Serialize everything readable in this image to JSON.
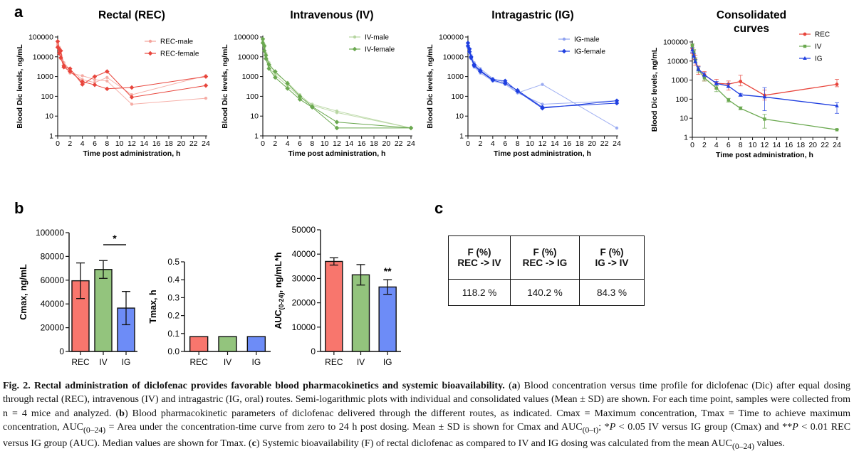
{
  "panel_labels": {
    "a": "a",
    "b": "b",
    "c": "c"
  },
  "colors": {
    "rec": "#e8453c",
    "rec_light": "#f4a39b",
    "iv": "#6aa84f",
    "iv_light": "#b5d59f",
    "ig": "#1f3fe0",
    "ig_light": "#8fa2f0",
    "bar_rec": "#f8766d",
    "bar_iv": "#93c47d",
    "bar_ig": "#6d8cf7"
  },
  "chart_data": [
    {
      "id": "rec",
      "type": "line",
      "title": "Rectal (REC)",
      "xlabel": "Time post administration,  h",
      "ylabel": "Blood Dic levels, ng/mL",
      "yscale": "log",
      "ylim": [
        1,
        100000
      ],
      "xlim": [
        0,
        24
      ],
      "xticks": [
        0,
        2,
        4,
        6,
        8,
        10,
        12,
        14,
        16,
        18,
        20,
        22,
        24
      ],
      "yticks": [
        "1",
        "10",
        "100",
        "1000",
        "10000",
        "100000"
      ],
      "legend": [
        "REC-male",
        "REC-female"
      ],
      "series": [
        {
          "name": "REC-male",
          "style": "light",
          "lines": [
            [
              [
                0,
                50000
              ],
              [
                0.25,
                30000
              ],
              [
                0.5,
                12000
              ],
              [
                1,
                5000
              ],
              [
                2,
                2200
              ],
              [
                4,
                700
              ],
              [
                6,
                500
              ],
              [
                8,
                900
              ],
              [
                12,
                120
              ],
              [
                24,
                1100
              ]
            ],
            [
              [
                0,
                40000
              ],
              [
                0.25,
                20000
              ],
              [
                0.5,
                8000
              ],
              [
                1,
                4000
              ],
              [
                2,
                1500
              ],
              [
                4,
                1100
              ],
              [
                6,
                700
              ],
              [
                8,
                600
              ],
              [
                12,
                40
              ],
              [
                24,
                80
              ]
            ]
          ]
        },
        {
          "name": "REC-female",
          "style": "dark",
          "lines": [
            [
              [
                0,
                60000
              ],
              [
                0.25,
                25000
              ],
              [
                0.5,
                20000
              ],
              [
                1,
                3500
              ],
              [
                2,
                2500
              ],
              [
                4,
                400
              ],
              [
                6,
                1000
              ],
              [
                8,
                1800
              ],
              [
                12,
                90
              ],
              [
                24,
                350
              ]
            ],
            [
              [
                0,
                30000
              ],
              [
                0.25,
                15000
              ],
              [
                0.5,
                9000
              ],
              [
                1,
                3000
              ],
              [
                2,
                1800
              ],
              [
                4,
                550
              ],
              [
                6,
                380
              ],
              [
                8,
                240
              ],
              [
                12,
                280
              ],
              [
                24,
                1000
              ]
            ]
          ]
        }
      ]
    },
    {
      "id": "iv",
      "type": "line",
      "title": "Intravenous (IV)",
      "xlabel": "Time post administration,  h",
      "ylabel": "Blood Dic levels, ng/mL",
      "yscale": "log",
      "ylim": [
        1,
        100000
      ],
      "xlim": [
        0,
        24
      ],
      "xticks": [
        0,
        2,
        4,
        6,
        8,
        10,
        12,
        14,
        16,
        18,
        20,
        22,
        24
      ],
      "yticks": [
        "1",
        "10",
        "100",
        "1000",
        "10000",
        "100000"
      ],
      "legend": [
        "IV-male",
        "IV-female"
      ],
      "series": [
        {
          "name": "IV-male",
          "style": "light",
          "lines": [
            [
              [
                0,
                70000
              ],
              [
                0.25,
                40000
              ],
              [
                0.5,
                15000
              ],
              [
                1,
                5000
              ],
              [
                2,
                1500
              ],
              [
                4,
                500
              ],
              [
                6,
                120
              ],
              [
                8,
                35
              ],
              [
                12,
                15
              ],
              [
                24,
                2.5
              ]
            ],
            [
              [
                0,
                60000
              ],
              [
                0.25,
                30000
              ],
              [
                0.5,
                10000
              ],
              [
                1,
                3000
              ],
              [
                2,
                1200
              ],
              [
                4,
                350
              ],
              [
                6,
                90
              ],
              [
                8,
                40
              ],
              [
                12,
                18
              ],
              [
                24,
                2.5
              ]
            ]
          ]
        },
        {
          "name": "IV-female",
          "style": "dark",
          "lines": [
            [
              [
                0,
                80000
              ],
              [
                0.25,
                35000
              ],
              [
                0.5,
                12000
              ],
              [
                1,
                4000
              ],
              [
                2,
                1800
              ],
              [
                4,
                450
              ],
              [
                6,
                100
              ],
              [
                8,
                30
              ],
              [
                12,
                5
              ],
              [
                24,
                2.5
              ]
            ],
            [
              [
                0,
                50000
              ],
              [
                0.25,
                20000
              ],
              [
                0.5,
                8000
              ],
              [
                1,
                2500
              ],
              [
                2,
                900
              ],
              [
                4,
                250
              ],
              [
                6,
                70
              ],
              [
                8,
                28
              ],
              [
                12,
                2.5
              ],
              [
                24,
                2.5
              ]
            ]
          ]
        }
      ]
    },
    {
      "id": "ig",
      "type": "line",
      "title": "Intragastric (IG)",
      "xlabel": "Time post administration,  h",
      "ylabel": "Blood Dic levels, ng/mL",
      "yscale": "log",
      "ylim": [
        1,
        100000
      ],
      "xlim": [
        0,
        24
      ],
      "xticks": [
        0,
        2,
        4,
        6,
        8,
        10,
        12,
        14,
        16,
        18,
        20,
        22,
        24
      ],
      "yticks": [
        "1",
        "10",
        "100",
        "1000",
        "10000",
        "100000"
      ],
      "legend": [
        "IG-male",
        "IG-female"
      ],
      "series": [
        {
          "name": "IG-male",
          "style": "light",
          "lines": [
            [
              [
                0,
                40000
              ],
              [
                0.25,
                20000
              ],
              [
                0.5,
                12000
              ],
              [
                1,
                5000
              ],
              [
                2,
                2500
              ],
              [
                4,
                800
              ],
              [
                6,
                500
              ],
              [
                8,
                150
              ],
              [
                12,
                400
              ],
              [
                24,
                2.5
              ]
            ],
            [
              [
                0,
                30000
              ],
              [
                0.25,
                15000
              ],
              [
                0.5,
                8000
              ],
              [
                1,
                3000
              ],
              [
                2,
                1500
              ],
              [
                4,
                600
              ],
              [
                6,
                400
              ],
              [
                8,
                150
              ],
              [
                12,
                40
              ],
              [
                24,
                60
              ]
            ]
          ]
        },
        {
          "name": "IG-female",
          "style": "dark",
          "lines": [
            [
              [
                0,
                50000
              ],
              [
                0.25,
                25000
              ],
              [
                0.5,
                10000
              ],
              [
                1,
                4000
              ],
              [
                2,
                2000
              ],
              [
                4,
                700
              ],
              [
                6,
                600
              ],
              [
                8,
                180
              ],
              [
                12,
                25
              ],
              [
                24,
                60
              ]
            ],
            [
              [
                0,
                35000
              ],
              [
                0.25,
                18000
              ],
              [
                0.5,
                9000
              ],
              [
                1,
                3500
              ],
              [
                2,
                1800
              ],
              [
                4,
                650
              ],
              [
                6,
                450
              ],
              [
                8,
                200
              ],
              [
                12,
                28
              ],
              [
                24,
                45
              ]
            ]
          ]
        }
      ]
    },
    {
      "id": "cons",
      "type": "line",
      "title": "Consolidated curves",
      "title_lines": [
        "Consolidated",
        "curves"
      ],
      "xlabel": "Time post administration,  h",
      "ylabel": "Blood Dic levels, ng/mL",
      "yscale": "log",
      "ylim": [
        1,
        100000
      ],
      "xlim": [
        0,
        24
      ],
      "xticks": [
        0,
        2,
        4,
        6,
        8,
        10,
        12,
        14,
        16,
        18,
        20,
        22,
        24
      ],
      "yticks": [
        "1",
        "10",
        "100",
        "1000",
        "10000",
        "100000"
      ],
      "legend": [
        "REC",
        "IV",
        "IG"
      ],
      "series": [
        {
          "name": "REC",
          "x": [
            0,
            0.25,
            0.5,
            1,
            2,
            4,
            6,
            8,
            12,
            24
          ],
          "y": [
            45000,
            22000,
            12000,
            3800,
            1900,
            680,
            620,
            850,
            160,
            600
          ],
          "err_lo": [
            25000,
            12000,
            6000,
            2000,
            900,
            350,
            300,
            500,
            90,
            450
          ],
          "err_hi": [
            70000,
            35000,
            20000,
            5500,
            2800,
            1100,
            900,
            1800,
            300,
            1100
          ]
        },
        {
          "name": "IV",
          "x": [
            0,
            0.25,
            0.5,
            1,
            2,
            4,
            6,
            8,
            12,
            24
          ],
          "y": [
            65000,
            30000,
            11000,
            3500,
            1300,
            380,
            90,
            33,
            9,
            2.5
          ],
          "err_lo": [
            50000,
            20000,
            8000,
            2500,
            900,
            250,
            70,
            28,
            3,
            2.5
          ],
          "err_hi": [
            80000,
            40000,
            15000,
            5000,
            1800,
            500,
            110,
            40,
            16,
            2.5
          ]
        },
        {
          "name": "IG",
          "x": [
            0,
            0.25,
            0.5,
            1,
            2,
            4,
            6,
            8,
            12,
            24
          ],
          "y": [
            38000,
            19000,
            9500,
            3800,
            1900,
            680,
            480,
            170,
            130,
            45
          ],
          "err_lo": [
            28000,
            15000,
            8000,
            3000,
            1500,
            550,
            400,
            140,
            25,
            18
          ],
          "err_hi": [
            50000,
            25000,
            12000,
            5000,
            2500,
            850,
            650,
            200,
            400,
            65
          ]
        }
      ]
    },
    {
      "id": "cmax",
      "type": "bar",
      "ylabel": "Cmax, ng/mL",
      "categories": [
        "REC",
        "IV",
        "IG"
      ],
      "values": [
        59500,
        69000,
        36500
      ],
      "err": [
        15000,
        7500,
        14000
      ],
      "ylim": [
        0,
        100000
      ],
      "yticks": [
        "0",
        "20000",
        "40000",
        "60000",
        "80000",
        "100000"
      ],
      "annotation": "*",
      "annotation_between": [
        "IV",
        "IG"
      ]
    },
    {
      "id": "tmax",
      "type": "bar",
      "ylabel": "Tmax, h",
      "categories": [
        "REC",
        "IV",
        "IG"
      ],
      "values": [
        0.083,
        0.083,
        0.083
      ],
      "ylim": [
        0,
        0.5
      ],
      "yticks": [
        "0.0",
        "0.1",
        "0.2",
        "0.3",
        "0.4",
        "0.5"
      ]
    },
    {
      "id": "auc",
      "type": "bar",
      "ylabel_main": "AUC",
      "ylabel_sub": "(0-24)",
      "ylabel_rest": ", ng/mL*h",
      "categories": [
        "REC",
        "IV",
        "IG"
      ],
      "values": [
        37000,
        31500,
        26500
      ],
      "err": [
        1500,
        4200,
        3000
      ],
      "ylim": [
        0,
        50000
      ],
      "yticks": [
        "0",
        "10000",
        "20000",
        "30000",
        "40000",
        "50000"
      ],
      "annotation": "**",
      "annotation_on": "IG"
    },
    {
      "id": "bioavailability",
      "type": "table",
      "headers": [
        [
          "F (%)",
          "REC -> IV"
        ],
        [
          "F (%)",
          "REC -> IG"
        ],
        [
          "F (%)",
          "IG -> IV"
        ]
      ],
      "values": [
        "118.2 %",
        "140.2 %",
        "84.3 %"
      ]
    }
  ],
  "caption": {
    "figno": "Fig. 2.",
    "title": "Rectal administration of diclofenac provides favorable blood pharmacokinetics and systemic bioavailability.",
    "a_lbl": "a",
    "a_text": "Blood concentration versus time profile for diclofenac (Dic) after equal dosing through rectal (REC), intravenous (IV) and intragastric (IG, oral) routes. Semi-logarithmic plots with individual and consolidated values (Mean ± SD) are shown. For each time point, samples were collected from n = 4 mice and analyzed.",
    "b_lbl": "b",
    "b_text1": "Blood pharmacokinetic parameters of diclofenac delivered through the different routes, as indicated. Cmax = Maximum concentration, Tmax = Time to achieve maximum concentration, AUC",
    "b_sub1": "(0–24)",
    "b_text2": "= Area under the concentration-time curve from zero to 24 h post dosing. Mean ± SD is shown for Cmax and AUC",
    "b_sub2": "(0–t)",
    "b_text3": "; *",
    "p1": "P",
    "b_text4": "< 0.05 IV versus IG group (Cmax) and **",
    "p2": "P",
    "b_text5": "< 0.01 REC versus IG group (AUC). Median values are shown for Tmax.",
    "c_lbl": "c",
    "c_text1": "Systemic bioavailability (F) of rectal diclofenac as compared to IV and IG dosing was calculated from the mean AUC",
    "c_sub": "(0–24)",
    "c_text2": "values."
  }
}
